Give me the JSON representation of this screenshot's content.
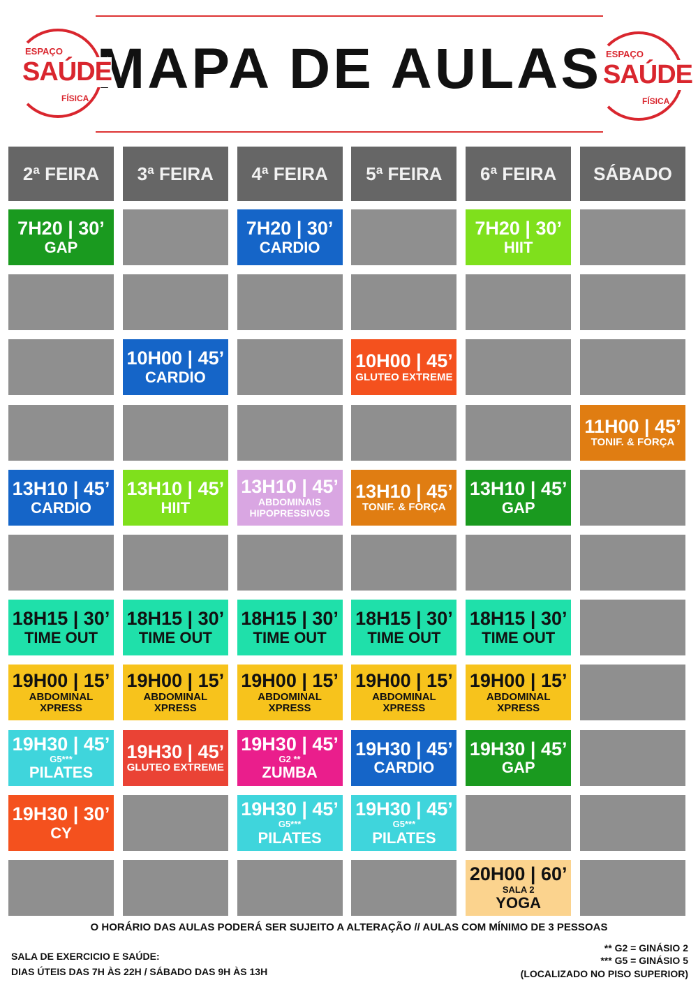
{
  "header": {
    "title": "MAPA DE AULAS",
    "logo": {
      "top": "ESPAÇO",
      "main": "SAÚDE",
      "bottom": "FÍSICA"
    }
  },
  "days": [
    "2ª FEIRA",
    "3ª FEIRA",
    "4ª FEIRA",
    "5ª FEIRA",
    "6ª FEIRA",
    "SÁBADO"
  ],
  "rows": [
    [
      {
        "time": "7H20 | 30’",
        "name": "GAP",
        "color": "#1a9a1f",
        "text_color": "#ffffff"
      },
      null,
      {
        "time": "7H20 | 30’",
        "name": "CARDIO",
        "color": "#1565c8",
        "text_color": "#ffffff"
      },
      null,
      {
        "time": "7H20 | 30’",
        "name": "HIIT",
        "color": "#7fe01c",
        "text_color": "#ffffff"
      },
      null
    ],
    [
      null,
      null,
      null,
      null,
      null,
      null
    ],
    [
      null,
      {
        "time": "10H00 | 45’",
        "name": "CARDIO",
        "color": "#1565c8",
        "text_color": "#ffffff"
      },
      null,
      {
        "time": "10H00 | 45’",
        "name": "GLUTEO EXTREME",
        "color": "#f4511e",
        "text_color": "#ffffff"
      },
      null,
      null
    ],
    [
      null,
      null,
      null,
      null,
      null,
      {
        "time": "11H00 | 45’",
        "name": "TONIF. & FORÇA",
        "color": "#e07d12",
        "text_color": "#ffffff"
      }
    ],
    [
      {
        "time": "13H10 | 45’",
        "name": "CARDIO",
        "color": "#1565c8",
        "text_color": "#ffffff"
      },
      {
        "time": "13H10 | 45’",
        "name": "HIIT",
        "color": "#7fe01c",
        "text_color": "#ffffff"
      },
      {
        "time": "13H10 | 45’",
        "name": "ABDOMINAIS HIPOPRESSIVOS",
        "color": "#d9a6e2",
        "text_color": "#ffffff"
      },
      {
        "time": "13H10 | 45’",
        "name": "TONIF. & FORÇA",
        "color": "#e07d12",
        "text_color": "#ffffff"
      },
      {
        "time": "13H10 | 45’",
        "name": "GAP",
        "color": "#1a9a1f",
        "text_color": "#ffffff"
      },
      null
    ],
    [
      null,
      null,
      null,
      null,
      null,
      null
    ],
    [
      {
        "time": "18H15 | 30’",
        "name": "TIME OUT",
        "color": "#1fe0aa",
        "text_color": "#111111"
      },
      {
        "time": "18H15 | 30’",
        "name": "TIME OUT",
        "color": "#1fe0aa",
        "text_color": "#111111"
      },
      {
        "time": "18H15 | 30’",
        "name": "TIME OUT",
        "color": "#1fe0aa",
        "text_color": "#111111"
      },
      {
        "time": "18H15 | 30’",
        "name": "TIME OUT",
        "color": "#1fe0aa",
        "text_color": "#111111"
      },
      {
        "time": "18H15 | 30’",
        "name": "TIME OUT",
        "color": "#1fe0aa",
        "text_color": "#111111"
      },
      null
    ],
    [
      {
        "time": "19H00 | 15’",
        "name": "ABDOMINAL XPRESS",
        "color": "#f7c31c",
        "text_color": "#111111"
      },
      {
        "time": "19H00 | 15’",
        "name": "ABDOMINAL XPRESS",
        "color": "#f7c31c",
        "text_color": "#111111"
      },
      {
        "time": "19H00 | 15’",
        "name": "ABDOMINAL XPRESS",
        "color": "#f7c31c",
        "text_color": "#111111"
      },
      {
        "time": "19H00 | 15’",
        "name": "ABDOMINAL XPRESS",
        "color": "#f7c31c",
        "text_color": "#111111"
      },
      {
        "time": "19H00 | 15’",
        "name": "ABDOMINAL XPRESS",
        "color": "#f7c31c",
        "text_color": "#111111"
      },
      null
    ],
    [
      {
        "time": "19H30 | 45’",
        "note": "G5***",
        "name": "PILATES",
        "color": "#3fd5dc",
        "text_color": "#ffffff"
      },
      {
        "time": "19H30 | 45’",
        "name": "GLUTEO EXTREME",
        "color": "#ea4335",
        "text_color": "#ffffff"
      },
      {
        "time": "19H30 | 45’",
        "note": "G2 **",
        "name": "ZUMBA",
        "color": "#ea1e8c",
        "text_color": "#ffffff"
      },
      {
        "time": "19H30 | 45’",
        "name": "CARDIO",
        "color": "#1565c8",
        "text_color": "#ffffff"
      },
      {
        "time": "19H30 | 45’",
        "name": "GAP",
        "color": "#1a9a1f",
        "text_color": "#ffffff"
      },
      null
    ],
    [
      {
        "time": "19H30 | 30’",
        "name": "CY",
        "color": "#f4511e",
        "text_color": "#ffffff"
      },
      null,
      {
        "time": "19H30 | 45’",
        "note": "G5***",
        "name": "PILATES",
        "color": "#3fd5dc",
        "text_color": "#ffffff"
      },
      {
        "time": "19H30 | 45’",
        "note": "G5***",
        "name": "PILATES",
        "color": "#3fd5dc",
        "text_color": "#ffffff"
      },
      null,
      null
    ],
    [
      null,
      null,
      null,
      null,
      {
        "time": "20H00 | 60’",
        "note": "SALA 2",
        "name": "YOGA",
        "color": "#fbd38e",
        "text_color": "#111111"
      },
      null
    ]
  ],
  "footer": {
    "notice": "O HORÁRIO DAS AULAS  PODERÁ SER SUJEITO A ALTERAÇÃO // AULAS COM MÍNIMO DE 3 PESSOAS",
    "room_title": "SALA DE EXERCICIO E SAÚDE:",
    "room_hours": "DIAS ÚTEIS DAS 7H ÀS 22H / SÁBADO DAS 9H ÀS 13H",
    "legend": [
      "** G2 = GINÁSIO 2",
      "*** G5 = GINÁSIO 5",
      "(LOCALIZADO NO PISO SUPERIOR)"
    ]
  }
}
